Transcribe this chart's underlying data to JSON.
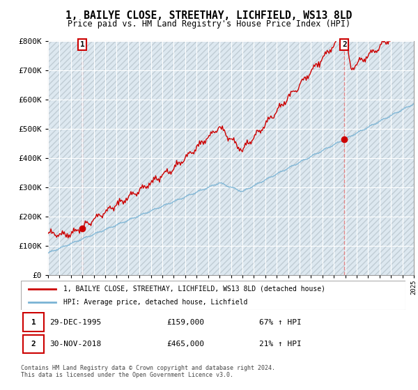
{
  "title": "1, BAILYE CLOSE, STREETHAY, LICHFIELD, WS13 8LD",
  "subtitle": "Price paid vs. HM Land Registry's House Price Index (HPI)",
  "ylim": [
    0,
    800000
  ],
  "yticks": [
    0,
    100000,
    200000,
    300000,
    400000,
    500000,
    600000,
    700000,
    800000
  ],
  "ytick_labels": [
    "£0",
    "£100K",
    "£200K",
    "£300K",
    "£400K",
    "£500K",
    "£600K",
    "£700K",
    "£800K"
  ],
  "hpi_color": "#7ab3d4",
  "price_color": "#cc0000",
  "vline_color": "#e88080",
  "point1_date": 1995.99,
  "point1_value": 159000,
  "point2_date": 2018.92,
  "point2_value": 465000,
  "legend_line1": "1, BAILYE CLOSE, STREETHAY, LICHFIELD, WS13 8LD (detached house)",
  "legend_line2": "HPI: Average price, detached house, Lichfield",
  "ann1_label": "1",
  "ann2_label": "2",
  "info1_num": "1",
  "info1_date": "29-DEC-1995",
  "info1_price": "£159,000",
  "info1_hpi": "67% ↑ HPI",
  "info2_num": "2",
  "info2_date": "30-NOV-2018",
  "info2_price": "£465,000",
  "info2_hpi": "21% ↑ HPI",
  "footer": "Contains HM Land Registry data © Crown copyright and database right 2024.\nThis data is licensed under the Open Government Licence v3.0.",
  "bg_color": "#dde8f0",
  "grid_color": "#ffffff",
  "title_fontsize": 10.5,
  "subtitle_fontsize": 8.5,
  "axis_fontsize": 8
}
